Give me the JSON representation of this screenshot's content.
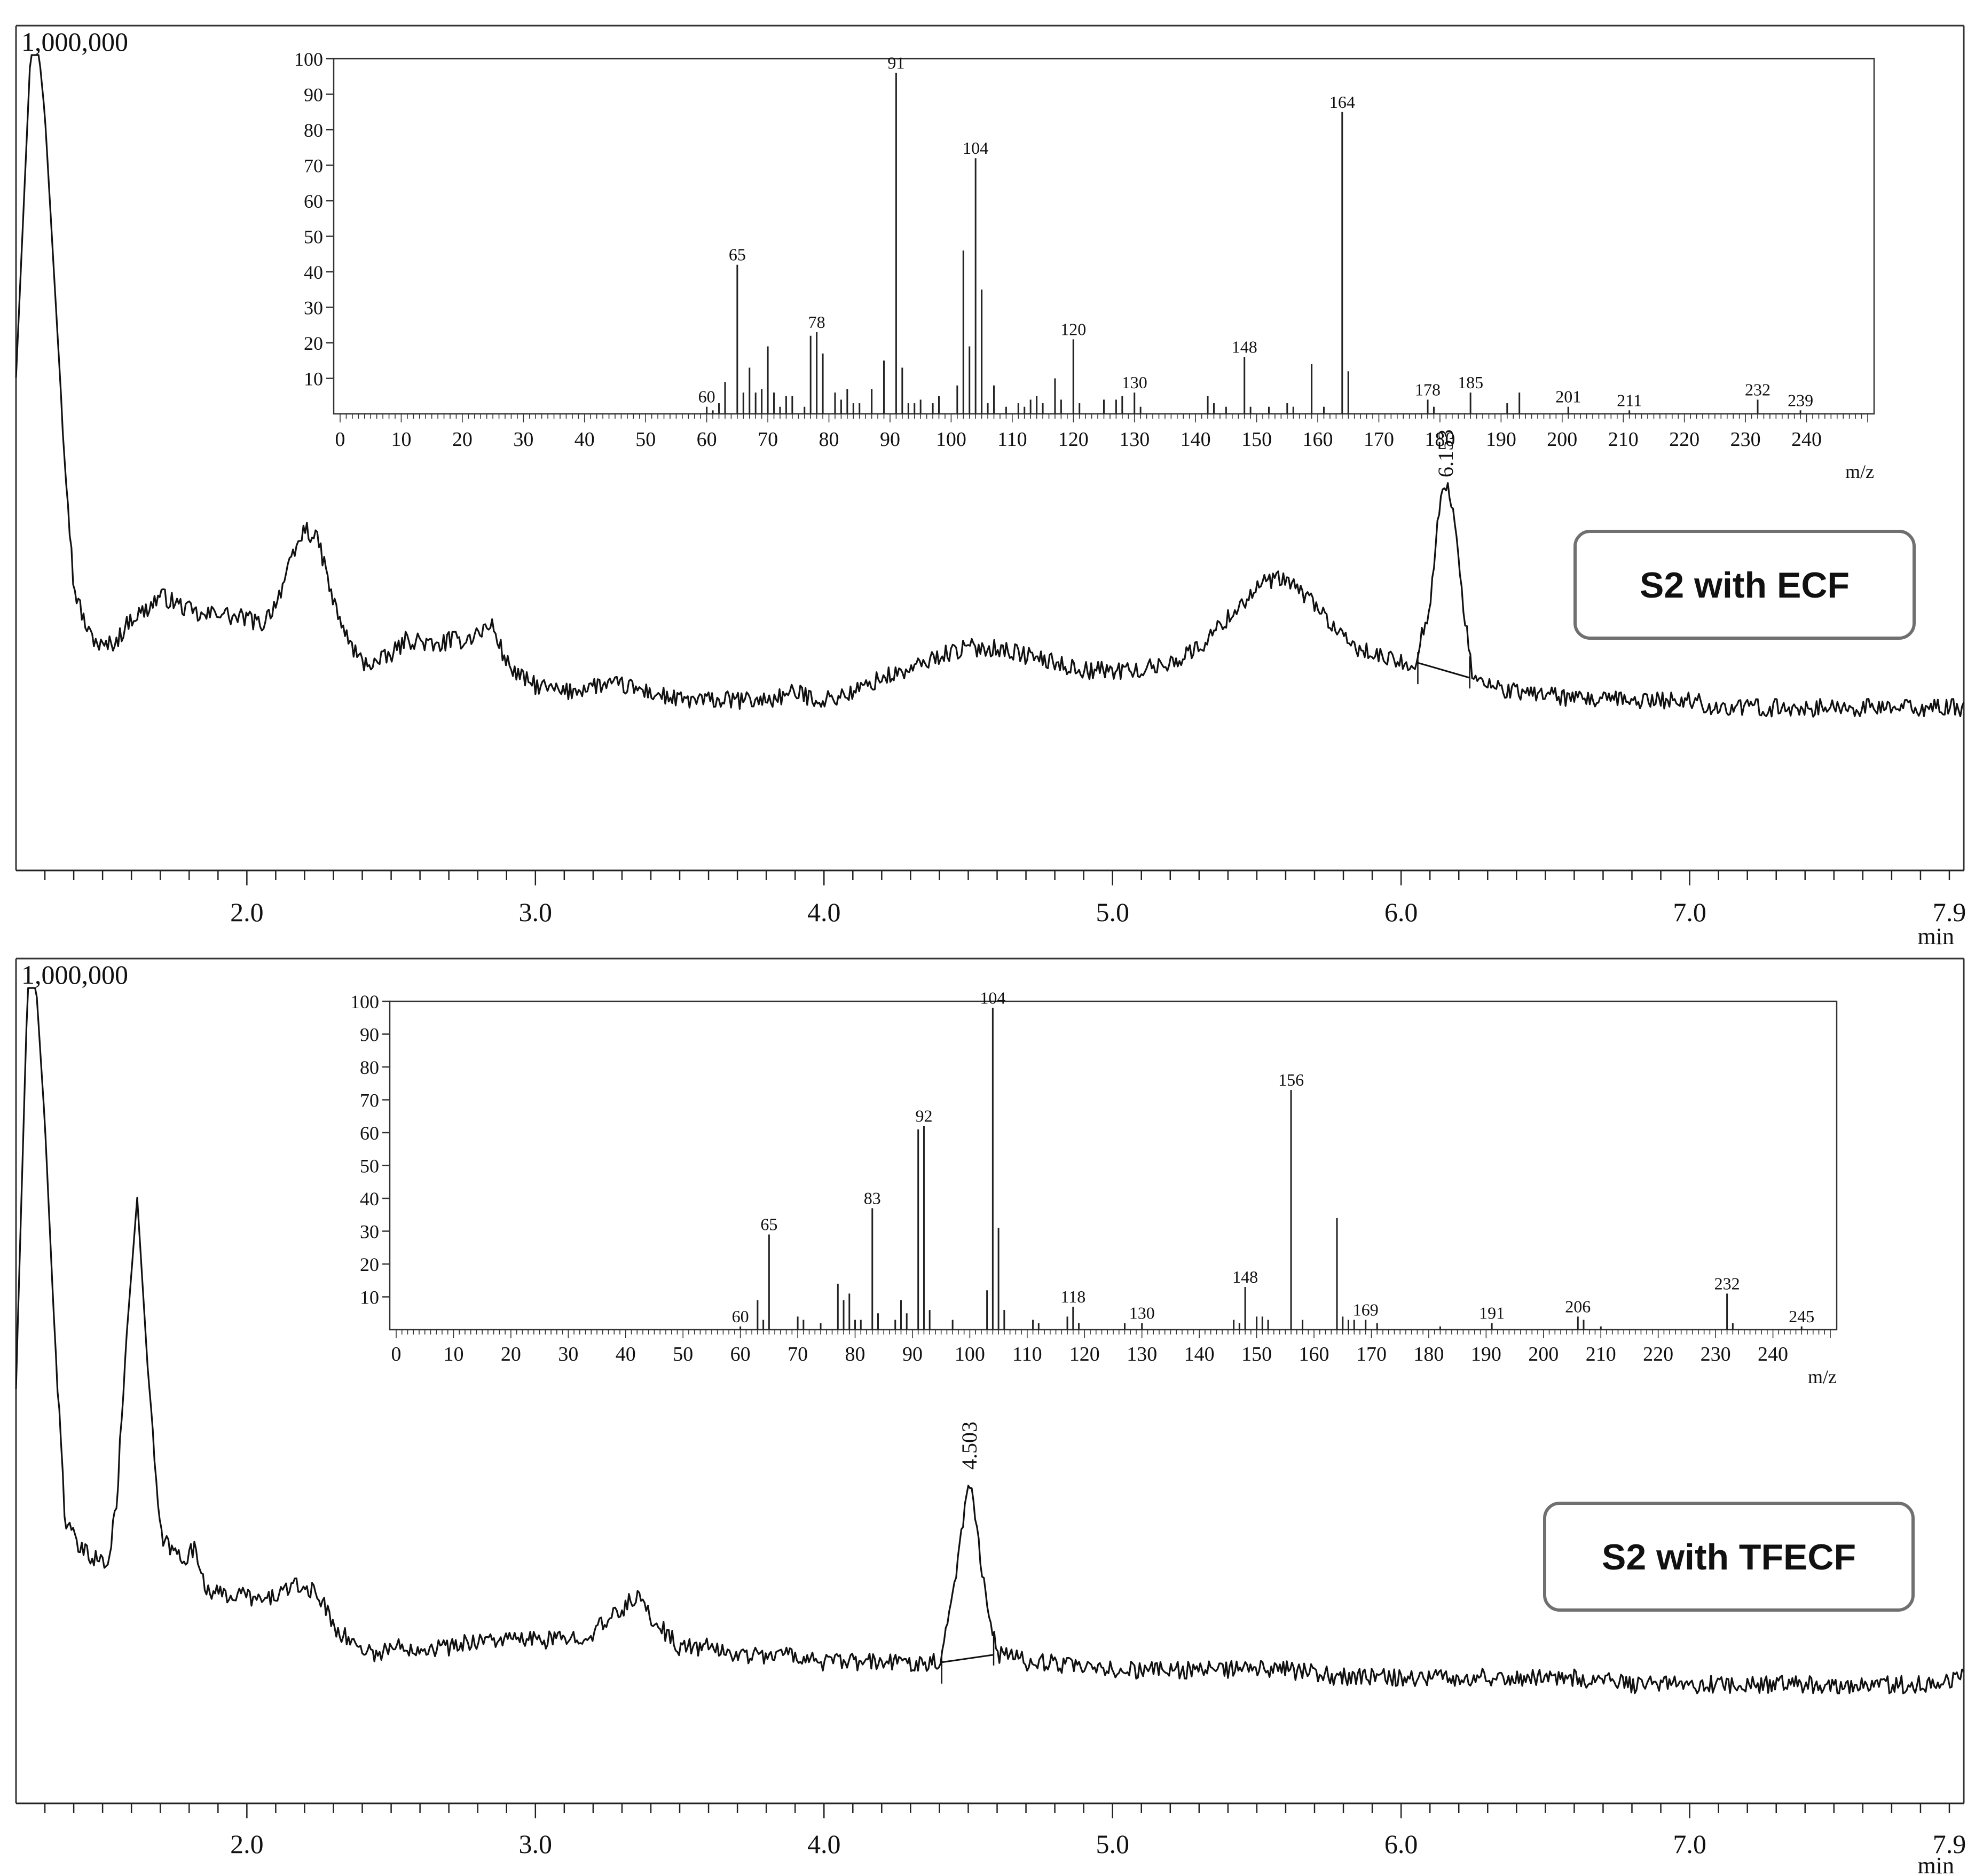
{
  "chart_data": [
    {
      "id": "ecf",
      "type": "line",
      "box_label": "S2 with ECF",
      "y_top_label": "1,000,000",
      "x_unit": "min",
      "xlim": [
        1.2,
        7.95
      ],
      "x_ticks": [
        "2.0",
        "3.0",
        "4.0",
        "5.0",
        "6.0",
        "7.0",
        "7.9"
      ],
      "x_tick_values": [
        2.0,
        3.0,
        4.0,
        5.0,
        6.0,
        7.0,
        7.9
      ],
      "peak_label": "6.153",
      "peak_x": 6.153,
      "series": [
        {
          "x": [
            1.2,
            1.25,
            1.28,
            1.3,
            1.33,
            1.36,
            1.4,
            1.45,
            1.5,
            1.55,
            1.6,
            1.65,
            1.7,
            1.75,
            1.8,
            1.85,
            1.9,
            1.95,
            2.0,
            2.05,
            2.1,
            2.15,
            2.2,
            2.25,
            2.3,
            2.35,
            2.4,
            2.45,
            2.5,
            2.55,
            2.6,
            2.65,
            2.7,
            2.75,
            2.8,
            2.85,
            2.9,
            2.95,
            3.0,
            3.1,
            3.2,
            3.3,
            3.4,
            3.5,
            3.6,
            3.7,
            3.8,
            3.9,
            4.0,
            4.1,
            4.2,
            4.3,
            4.4,
            4.5,
            4.6,
            4.7,
            4.8,
            4.9,
            5.0,
            5.1,
            5.2,
            5.3,
            5.4,
            5.5,
            5.55,
            5.6,
            5.7,
            5.8,
            5.9,
            6.0,
            6.05,
            6.1,
            6.13,
            6.153,
            6.18,
            6.21,
            6.25,
            6.3,
            6.4,
            6.5,
            6.6,
            6.7,
            6.8,
            6.9,
            7.0,
            7.1,
            7.2,
            7.3,
            7.4,
            7.5,
            7.6,
            7.7,
            7.8,
            7.9,
            7.95
          ],
          "y": [
            0.55,
            0.98,
            0.98,
            0.9,
            0.7,
            0.5,
            0.27,
            0.21,
            0.19,
            0.2,
            0.23,
            0.24,
            0.26,
            0.25,
            0.24,
            0.23,
            0.24,
            0.23,
            0.23,
            0.22,
            0.25,
            0.3,
            0.35,
            0.33,
            0.25,
            0.2,
            0.17,
            0.17,
            0.18,
            0.2,
            0.2,
            0.19,
            0.2,
            0.2,
            0.21,
            0.22,
            0.17,
            0.15,
            0.14,
            0.13,
            0.14,
            0.14,
            0.13,
            0.12,
            0.12,
            0.12,
            0.12,
            0.13,
            0.12,
            0.13,
            0.15,
            0.16,
            0.18,
            0.19,
            0.19,
            0.18,
            0.17,
            0.16,
            0.16,
            0.16,
            0.17,
            0.19,
            0.23,
            0.27,
            0.28,
            0.28,
            0.25,
            0.2,
            0.18,
            0.17,
            0.17,
            0.25,
            0.37,
            0.41,
            0.38,
            0.26,
            0.15,
            0.14,
            0.13,
            0.13,
            0.12,
            0.12,
            0.12,
            0.12,
            0.12,
            0.11,
            0.11,
            0.11,
            0.11,
            0.11,
            0.11,
            0.11,
            0.11,
            0.11,
            0.11
          ]
        }
      ],
      "inset": {
        "type": "bar",
        "xlabel": "m/z",
        "xlim": [
          0,
          250
        ],
        "ylim": [
          0,
          100
        ],
        "x_ticks": [
          0,
          10,
          20,
          30,
          40,
          50,
          60,
          70,
          80,
          90,
          100,
          110,
          120,
          130,
          140,
          150,
          160,
          170,
          180,
          190,
          200,
          210,
          220,
          230,
          240
        ],
        "y_ticks": [
          10,
          20,
          30,
          40,
          50,
          60,
          70,
          80,
          90,
          100
        ],
        "peaks": [
          [
            60,
            2
          ],
          [
            61,
            1
          ],
          [
            62,
            3
          ],
          [
            63,
            9
          ],
          [
            65,
            42
          ],
          [
            66,
            6
          ],
          [
            67,
            13
          ],
          [
            68,
            6
          ],
          [
            69,
            7
          ],
          [
            70,
            19
          ],
          [
            71,
            6
          ],
          [
            72,
            2
          ],
          [
            73,
            5
          ],
          [
            74,
            5
          ],
          [
            76,
            2
          ],
          [
            77,
            22
          ],
          [
            78,
            23
          ],
          [
            79,
            17
          ],
          [
            81,
            6
          ],
          [
            82,
            4
          ],
          [
            83,
            7
          ],
          [
            84,
            3
          ],
          [
            85,
            3
          ],
          [
            87,
            7
          ],
          [
            89,
            15
          ],
          [
            91,
            96
          ],
          [
            92,
            13
          ],
          [
            93,
            3
          ],
          [
            94,
            3
          ],
          [
            95,
            4
          ],
          [
            97,
            3
          ],
          [
            98,
            5
          ],
          [
            101,
            8
          ],
          [
            102,
            46
          ],
          [
            103,
            19
          ],
          [
            104,
            72
          ],
          [
            105,
            35
          ],
          [
            106,
            3
          ],
          [
            107,
            8
          ],
          [
            109,
            2
          ],
          [
            111,
            3
          ],
          [
            112,
            2
          ],
          [
            113,
            4
          ],
          [
            114,
            5
          ],
          [
            115,
            3
          ],
          [
            117,
            10
          ],
          [
            118,
            4
          ],
          [
            120,
            21
          ],
          [
            121,
            3
          ],
          [
            125,
            4
          ],
          [
            127,
            4
          ],
          [
            128,
            5
          ],
          [
            130,
            6
          ],
          [
            131,
            2
          ],
          [
            142,
            5
          ],
          [
            143,
            3
          ],
          [
            145,
            2
          ],
          [
            148,
            16
          ],
          [
            149,
            2
          ],
          [
            152,
            2
          ],
          [
            155,
            3
          ],
          [
            156,
            2
          ],
          [
            159,
            14
          ],
          [
            161,
            2
          ],
          [
            164,
            85
          ],
          [
            165,
            12
          ],
          [
            178,
            4
          ],
          [
            179,
            2
          ],
          [
            185,
            6
          ],
          [
            191,
            3
          ],
          [
            193,
            6
          ],
          [
            201,
            2
          ],
          [
            211,
            1
          ],
          [
            232,
            4
          ],
          [
            239,
            1
          ]
        ],
        "labels": [
          [
            60,
            "60"
          ],
          [
            65,
            "65"
          ],
          [
            78,
            "78"
          ],
          [
            91,
            "91"
          ],
          [
            104,
            "104"
          ],
          [
            120,
            "120"
          ],
          [
            130,
            "130"
          ],
          [
            148,
            "148"
          ],
          [
            164,
            "164"
          ],
          [
            178,
            "178"
          ],
          [
            185,
            "185"
          ],
          [
            201,
            "201"
          ],
          [
            211,
            "211"
          ],
          [
            232,
            "232"
          ],
          [
            239,
            "239"
          ]
        ]
      }
    },
    {
      "id": "tfecf",
      "type": "line",
      "box_label": "S2 with TFECF",
      "y_top_label": "1,000,000",
      "x_unit": "min",
      "xlim": [
        1.2,
        7.95
      ],
      "x_ticks": [
        "2.0",
        "3.0",
        "4.0",
        "5.0",
        "6.0",
        "7.0",
        "7.9"
      ],
      "x_tick_values": [
        2.0,
        3.0,
        4.0,
        5.0,
        6.0,
        7.0,
        7.9
      ],
      "peak_label": "4.503",
      "peak_x": 4.503,
      "series": [
        {
          "x": [
            1.2,
            1.24,
            1.27,
            1.3,
            1.33,
            1.37,
            1.42,
            1.47,
            1.52,
            1.55,
            1.58,
            1.62,
            1.66,
            1.7,
            1.74,
            1.78,
            1.82,
            1.86,
            1.9,
            1.95,
            2.0,
            2.05,
            2.1,
            2.15,
            2.2,
            2.25,
            2.3,
            2.35,
            2.4,
            2.45,
            2.5,
            2.6,
            2.7,
            2.8,
            2.9,
            3.0,
            3.1,
            3.2,
            3.3,
            3.35,
            3.4,
            3.45,
            3.5,
            3.6,
            3.7,
            3.8,
            3.9,
            4.0,
            4.1,
            4.2,
            4.3,
            4.4,
            4.45,
            4.503,
            4.55,
            4.6,
            4.65,
            4.7,
            4.8,
            4.9,
            5.0,
            5.2,
            5.4,
            5.6,
            5.8,
            6.0,
            6.2,
            6.4,
            6.6,
            6.8,
            7.0,
            7.2,
            7.4,
            7.6,
            7.8,
            7.95
          ],
          "y": [
            0.45,
            0.98,
            0.98,
            0.8,
            0.55,
            0.27,
            0.23,
            0.22,
            0.21,
            0.3,
            0.5,
            0.7,
            0.45,
            0.25,
            0.23,
            0.22,
            0.23,
            0.18,
            0.17,
            0.17,
            0.17,
            0.16,
            0.17,
            0.18,
            0.18,
            0.17,
            0.13,
            0.11,
            0.1,
            0.09,
            0.1,
            0.1,
            0.1,
            0.11,
            0.11,
            0.11,
            0.11,
            0.12,
            0.15,
            0.17,
            0.14,
            0.12,
            0.1,
            0.1,
            0.09,
            0.09,
            0.09,
            0.08,
            0.08,
            0.08,
            0.08,
            0.08,
            0.18,
            0.33,
            0.2,
            0.09,
            0.09,
            0.08,
            0.08,
            0.07,
            0.07,
            0.07,
            0.07,
            0.07,
            0.06,
            0.06,
            0.06,
            0.06,
            0.06,
            0.05,
            0.05,
            0.05,
            0.05,
            0.05,
            0.05,
            0.06
          ]
        }
      ],
      "inset": {
        "type": "bar",
        "xlabel": "m/z",
        "xlim": [
          0,
          250
        ],
        "ylim": [
          0,
          100
        ],
        "x_ticks": [
          0,
          10,
          20,
          30,
          40,
          50,
          60,
          70,
          80,
          90,
          100,
          110,
          120,
          130,
          140,
          150,
          160,
          170,
          180,
          190,
          200,
          210,
          220,
          230,
          240
        ],
        "y_ticks": [
          10,
          20,
          30,
          40,
          50,
          60,
          70,
          80,
          90,
          100
        ],
        "peaks": [
          [
            60,
            1
          ],
          [
            63,
            9
          ],
          [
            64,
            3
          ],
          [
            65,
            29
          ],
          [
            70,
            4
          ],
          [
            71,
            3
          ],
          [
            74,
            2
          ],
          [
            77,
            14
          ],
          [
            78,
            9
          ],
          [
            79,
            11
          ],
          [
            80,
            3
          ],
          [
            81,
            3
          ],
          [
            83,
            37
          ],
          [
            84,
            5
          ],
          [
            87,
            3
          ],
          [
            88,
            9
          ],
          [
            89,
            5
          ],
          [
            91,
            61
          ],
          [
            92,
            62
          ],
          [
            93,
            6
          ],
          [
            97,
            3
          ],
          [
            103,
            12
          ],
          [
            104,
            98
          ],
          [
            105,
            31
          ],
          [
            106,
            6
          ],
          [
            111,
            3
          ],
          [
            112,
            2
          ],
          [
            117,
            4
          ],
          [
            118,
            7
          ],
          [
            119,
            2
          ],
          [
            127,
            2
          ],
          [
            130,
            2
          ],
          [
            146,
            3
          ],
          [
            147,
            2
          ],
          [
            148,
            13
          ],
          [
            150,
            4
          ],
          [
            151,
            4
          ],
          [
            152,
            3
          ],
          [
            156,
            73
          ],
          [
            158,
            3
          ],
          [
            164,
            34
          ],
          [
            165,
            4
          ],
          [
            166,
            3
          ],
          [
            167,
            3
          ],
          [
            169,
            3
          ],
          [
            171,
            2
          ],
          [
            182,
            1
          ],
          [
            191,
            2
          ],
          [
            206,
            4
          ],
          [
            207,
            3
          ],
          [
            210,
            1
          ],
          [
            232,
            11
          ],
          [
            233,
            2
          ],
          [
            245,
            1
          ]
        ],
        "labels": [
          [
            60,
            "60"
          ],
          [
            65,
            "65"
          ],
          [
            83,
            "83"
          ],
          [
            92,
            "92"
          ],
          [
            104,
            "104"
          ],
          [
            118,
            "118"
          ],
          [
            130,
            "130"
          ],
          [
            148,
            "148"
          ],
          [
            156,
            "156"
          ],
          [
            169,
            "169"
          ],
          [
            191,
            "191"
          ],
          [
            206,
            "206"
          ],
          [
            232,
            "232"
          ],
          [
            245,
            "245"
          ]
        ]
      }
    }
  ]
}
